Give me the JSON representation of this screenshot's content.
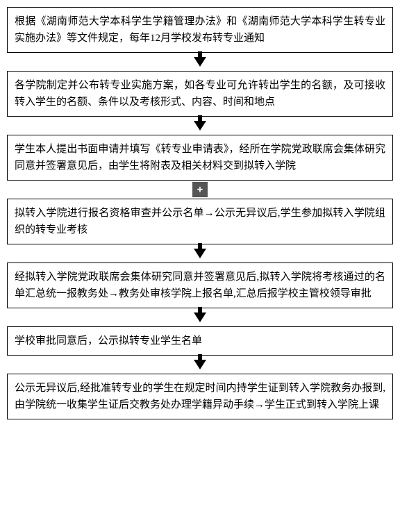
{
  "flowchart": {
    "type": "flowchart",
    "direction": "vertical",
    "box_border_color": "#000000",
    "box_border_width": 1,
    "box_background": "#ffffff",
    "text_color": "#000000",
    "font_family": "SimSun",
    "font_size": 15,
    "line_height": 1.6,
    "arrow_color": "#000000",
    "nodes": [
      {
        "id": "n1",
        "text": "根据《湖南师范大学本科学生学籍管理办法》和《湖南师范大学本科学生转专业实施办法》等文件规定，每年12月学校发布转专业通知"
      },
      {
        "id": "n2",
        "text": "各学院制定并公布转专业实施方案，如各专业可允许转出学生的名额，及可接收转入学生的名额、条件以及考核形式、内容、时间和地点"
      },
      {
        "id": "n3",
        "text": "学生本人提出书面申请并填写《转专业申请表》，经所在学院党政联席会集体研究同意并签署意见后，由学生将附表及相关材料交到拟转入学院"
      },
      {
        "id": "n4",
        "text": "拟转入学院进行报名资格审查并公示名单→公示无异议后,学生参加拟转入学院组织的转专业考核"
      },
      {
        "id": "n5",
        "text": "经拟转入学院党政联席会集体研究同意并签署意见后,拟转入学院将考核通过的名单汇总统一报教务处→教务处审核学院上报名单,汇总后报学校主管校领导审批"
      },
      {
        "id": "n6",
        "text": "学校审批同意后，公示拟转专业学生名单"
      },
      {
        "id": "n7",
        "text": "公示无异议后,经批准转专业的学生在规定时间内持学生证到转入学院教务办报到,由学院统一收集学生证后交教务处办理学籍异动手续→学生正式到转入学院上课"
      }
    ],
    "edges": [
      {
        "from": "n1",
        "to": "n2",
        "style": "arrow"
      },
      {
        "from": "n2",
        "to": "n3",
        "style": "arrow"
      },
      {
        "from": "n3",
        "to": "n4",
        "style": "plus"
      },
      {
        "from": "n4",
        "to": "n5",
        "style": "arrow"
      },
      {
        "from": "n5",
        "to": "n6",
        "style": "arrow"
      },
      {
        "from": "n6",
        "to": "n7",
        "style": "arrow"
      }
    ]
  }
}
